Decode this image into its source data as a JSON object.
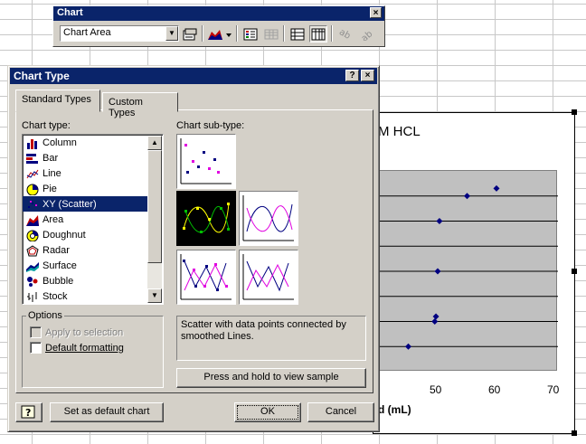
{
  "sheet": {
    "chart_title": "M HCL",
    "x_axis_label": "d (mL)",
    "x_ticks": [
      "50",
      "60",
      "70"
    ]
  },
  "chart_data": {
    "type": "scatter",
    "title": "M HCL",
    "xlabel": "d (mL)",
    "x_ticks": [
      50,
      60,
      70
    ],
    "x": [
      45,
      49.5,
      49.7,
      50,
      50.3,
      55,
      60
    ],
    "y": [
      1,
      2,
      2.2,
      4,
      6,
      7,
      7.3
    ],
    "grid": true
  },
  "toolbar": {
    "title": "Chart",
    "close": "×",
    "chart_area_value": "Chart Area",
    "buttons": [
      "format-chart-area",
      "chart-type",
      "legend",
      "data-table",
      "by-row",
      "by-column",
      "angle-text-downward",
      "angle-text-upward"
    ]
  },
  "dialog": {
    "title": "Chart Type",
    "help_glyph": "?",
    "close_glyph": "×",
    "tabs": [
      {
        "label": "Standard Types"
      },
      {
        "label": "Custom Types"
      }
    ],
    "chart_type_label": "Chart type:",
    "chart_types": [
      {
        "label": "Column"
      },
      {
        "label": "Bar"
      },
      {
        "label": "Line"
      },
      {
        "label": "Pie"
      },
      {
        "label": "XY (Scatter)"
      },
      {
        "label": "Area"
      },
      {
        "label": "Doughnut"
      },
      {
        "label": "Radar"
      },
      {
        "label": "Surface"
      },
      {
        "label": "Bubble"
      },
      {
        "label": "Stock"
      }
    ],
    "selected_type": "XY (Scatter)",
    "sub_type_label": "Chart sub-type:",
    "options_label": "Options",
    "apply_to_selection": "Apply to selection",
    "default_formatting": "Default formatting",
    "description": "Scatter with data points connected by smoothed Lines.",
    "press_hold": "Press and hold to view sample",
    "set_default": "Set as default chart",
    "ok": "OK",
    "cancel": "Cancel",
    "help_icon_glyph": "?"
  }
}
